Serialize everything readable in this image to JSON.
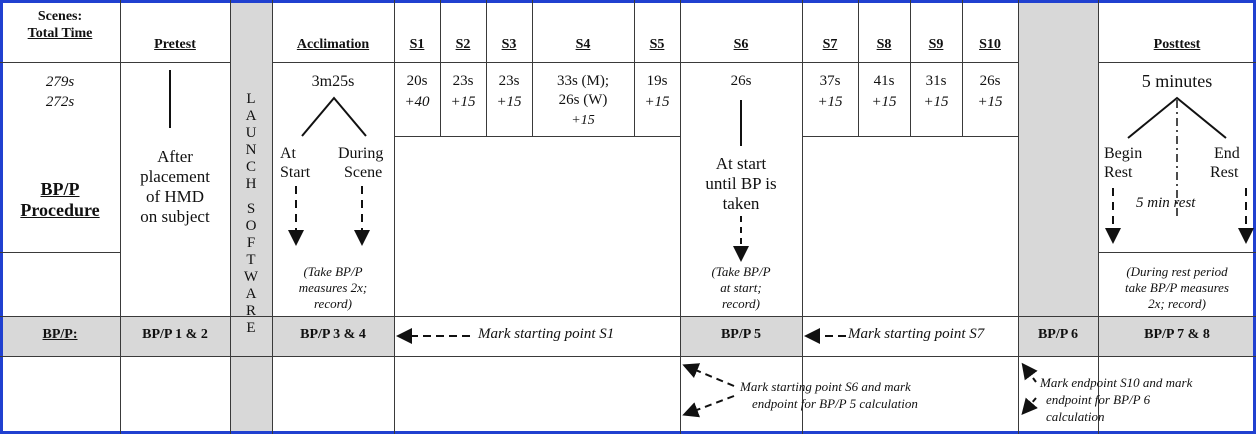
{
  "header": {
    "scenes": "Scenes:",
    "total_time": "Total Time",
    "pretest": "Pretest",
    "acclimation": "Acclimation",
    "s1": "S1",
    "s2": "S2",
    "s3": "S3",
    "s4": "S4",
    "s5": "S5",
    "s6": "S6",
    "s7": "S7",
    "s8": "S8",
    "s9": "S9",
    "s10": "S10",
    "posttest": "Posttest"
  },
  "times": {
    "total_1": "279s",
    "total_2": "272s",
    "acclimation": "3m25s",
    "s1": "20s",
    "s1_extra": "+40",
    "s2": "23s",
    "s2_extra": "+15",
    "s3": "23s",
    "s3_extra": "+15",
    "s4_line1": "33s (M);",
    "s4_line2": "26s (W)",
    "s4_extra": "+15",
    "s5": "19s",
    "s5_extra": "+15",
    "s6": "26s",
    "s7": "37s",
    "s7_extra": "+15",
    "s8": "41s",
    "s8_extra": "+15",
    "s9": "31s",
    "s9_extra": "+15",
    "s10": "26s",
    "s10_extra": "+15",
    "posttest": "5 minutes"
  },
  "launch": [
    "L",
    "A",
    "U",
    "N",
    "C",
    "H",
    "S",
    "O",
    "F",
    "T",
    "W",
    "A",
    "R",
    "E"
  ],
  "procedure": {
    "label_1": "BP/P",
    "label_2": "Procedure",
    "pretest": [
      "After",
      "placement",
      "of HMD",
      "on subject"
    ],
    "accl_at_1": "At",
    "accl_at_2": "Start",
    "accl_during_1": "During",
    "accl_during_2": "Scene",
    "accl_note": [
      "(Take BP/P",
      "measures 2x;",
      "record)"
    ],
    "s6": [
      "At start",
      "until BP is",
      "taken"
    ],
    "s6_note": [
      "(Take BP/P",
      "at start;",
      "record)"
    ],
    "post_begin_1": "Begin",
    "post_begin_2": "Rest",
    "post_end_1": "End",
    "post_end_2": "Rest",
    "post_rest": "5 min rest",
    "post_note": [
      "(During rest period",
      "take BP/P measures",
      "2x; record)"
    ]
  },
  "bp_row": {
    "label": "BP/P:",
    "pretest": "BP/P 1 & 2",
    "acclimation": "BP/P 3 & 4",
    "mark_s1": "Mark starting point S1",
    "s6": "BP/P 5",
    "mark_s7": "Mark starting point S7",
    "bp6": "BP/P 6",
    "posttest": "BP/P 7 & 8"
  },
  "notes": {
    "s6_note_1": "Mark starting point S6 and mark",
    "s6_note_2": "endpoint for BP/P 5 calculation",
    "s10_note_1": "Mark endpoint S10 and mark",
    "s10_note_2": "endpoint for BP/P 6",
    "s10_note_3": "calculation"
  },
  "colors": {
    "frame_border": "#2040d0",
    "shade": "#d8d8d8",
    "rule": "#3a3a3a"
  }
}
